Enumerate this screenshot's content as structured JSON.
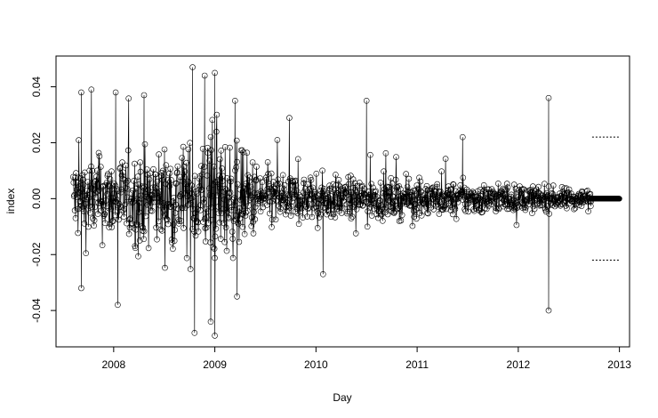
{
  "chart_data": {
    "type": "line",
    "title": "",
    "xlabel": "Day",
    "ylabel": "index",
    "xlim": [
      2007.43,
      2013.1
    ],
    "ylim": [
      -0.053,
      0.051
    ],
    "x_ticks": [
      2008,
      2009,
      2010,
      2011,
      2012,
      2013
    ],
    "x_tick_labels": [
      "2008",
      "2009",
      "2010",
      "2011",
      "2012",
      "2013"
    ],
    "y_ticks": [
      -0.04,
      -0.02,
      0.0,
      0.02,
      0.04
    ],
    "y_tick_labels": [
      "-0.04",
      "-0.02",
      "0.00",
      "0.02",
      "0.04"
    ],
    "markers": "open-circle",
    "series": [
      {
        "role": "observed daily index",
        "x_start": 2007.6,
        "x_end": 2012.72,
        "amplitude_envelope": [
          {
            "x": 2007.6,
            "y": 0.02
          },
          {
            "x": 2008.0,
            "y": 0.018
          },
          {
            "x": 2008.7,
            "y": 0.024
          },
          {
            "x": 2009.0,
            "y": 0.03
          },
          {
            "x": 2009.5,
            "y": 0.014
          },
          {
            "x": 2010.0,
            "y": 0.01
          },
          {
            "x": 2011.0,
            "y": 0.008
          },
          {
            "x": 2012.0,
            "y": 0.006
          },
          {
            "x": 2012.72,
            "y": 0.004
          }
        ],
        "notable_points": [
          {
            "x": 2007.68,
            "y": 0.038
          },
          {
            "x": 2007.68,
            "y": -0.032
          },
          {
            "x": 2007.78,
            "y": 0.039
          },
          {
            "x": 2008.02,
            "y": 0.038
          },
          {
            "x": 2008.04,
            "y": -0.038
          },
          {
            "x": 2008.3,
            "y": 0.037
          },
          {
            "x": 2008.78,
            "y": 0.047
          },
          {
            "x": 2008.8,
            "y": -0.048
          },
          {
            "x": 2008.9,
            "y": 0.044
          },
          {
            "x": 2008.96,
            "y": -0.044
          },
          {
            "x": 2009.0,
            "y": 0.045
          },
          {
            "x": 2009.0,
            "y": -0.049
          },
          {
            "x": 2009.2,
            "y": 0.035
          },
          {
            "x": 2009.22,
            "y": -0.035
          },
          {
            "x": 2010.07,
            "y": -0.027
          },
          {
            "x": 2010.5,
            "y": 0.035
          },
          {
            "x": 2011.45,
            "y": 0.022
          },
          {
            "x": 2012.3,
            "y": 0.036
          },
          {
            "x": 2012.3,
            "y": -0.04
          }
        ]
      },
      {
        "role": "forecast mean",
        "x": [
          2012.72,
          2013.0
        ],
        "y": [
          0.0,
          0.0
        ]
      },
      {
        "role": "upper bound",
        "line_style": "dotted",
        "x": [
          2012.73,
          2013.0
        ],
        "y": [
          0.022,
          0.022
        ]
      },
      {
        "role": "lower bound",
        "line_style": "dotted",
        "x": [
          2012.73,
          2013.0
        ],
        "y": [
          -0.022,
          -0.022
        ]
      }
    ]
  }
}
